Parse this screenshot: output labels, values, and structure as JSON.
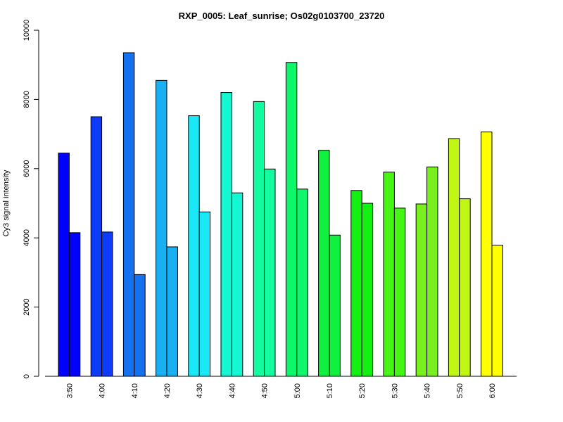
{
  "chart_data": {
    "type": "bar",
    "title": "RXP_0005: Leaf_sunrise; Os02g0103700_23720",
    "xlabel": "",
    "ylabel": "Cy3 signal intensity",
    "ylim": [
      0,
      10000
    ],
    "yticks": [
      0,
      2000,
      4000,
      6000,
      8000,
      10000
    ],
    "grid": false,
    "legend": "none",
    "categories": [
      "3:50",
      "4:00",
      "4:10",
      "4:20",
      "4:30",
      "4:40",
      "4:50",
      "5:00",
      "5:10",
      "5:20",
      "5:30",
      "5:40",
      "5:50",
      "6:00"
    ],
    "colors": [
      "#0000ff",
      "#0d3bf9",
      "#1471ef",
      "#18aff3",
      "#1ae8f7",
      "#14f7d3",
      "#12fb9e",
      "#0ef76a",
      "#10f03f",
      "#14f011",
      "#46f514",
      "#78f01e",
      "#c0f614",
      "#ffff00"
    ],
    "series": [
      {
        "values": [
          6450,
          7500,
          9350,
          8550,
          7530,
          8200,
          7940,
          9070,
          6530,
          5370,
          5900,
          4980,
          6870,
          7060
        ]
      },
      {
        "values": [
          4150,
          4170,
          2940,
          3740,
          4750,
          5300,
          5990,
          5410,
          4080,
          5000,
          4860,
          6050,
          5130,
          3790
        ]
      }
    ]
  }
}
